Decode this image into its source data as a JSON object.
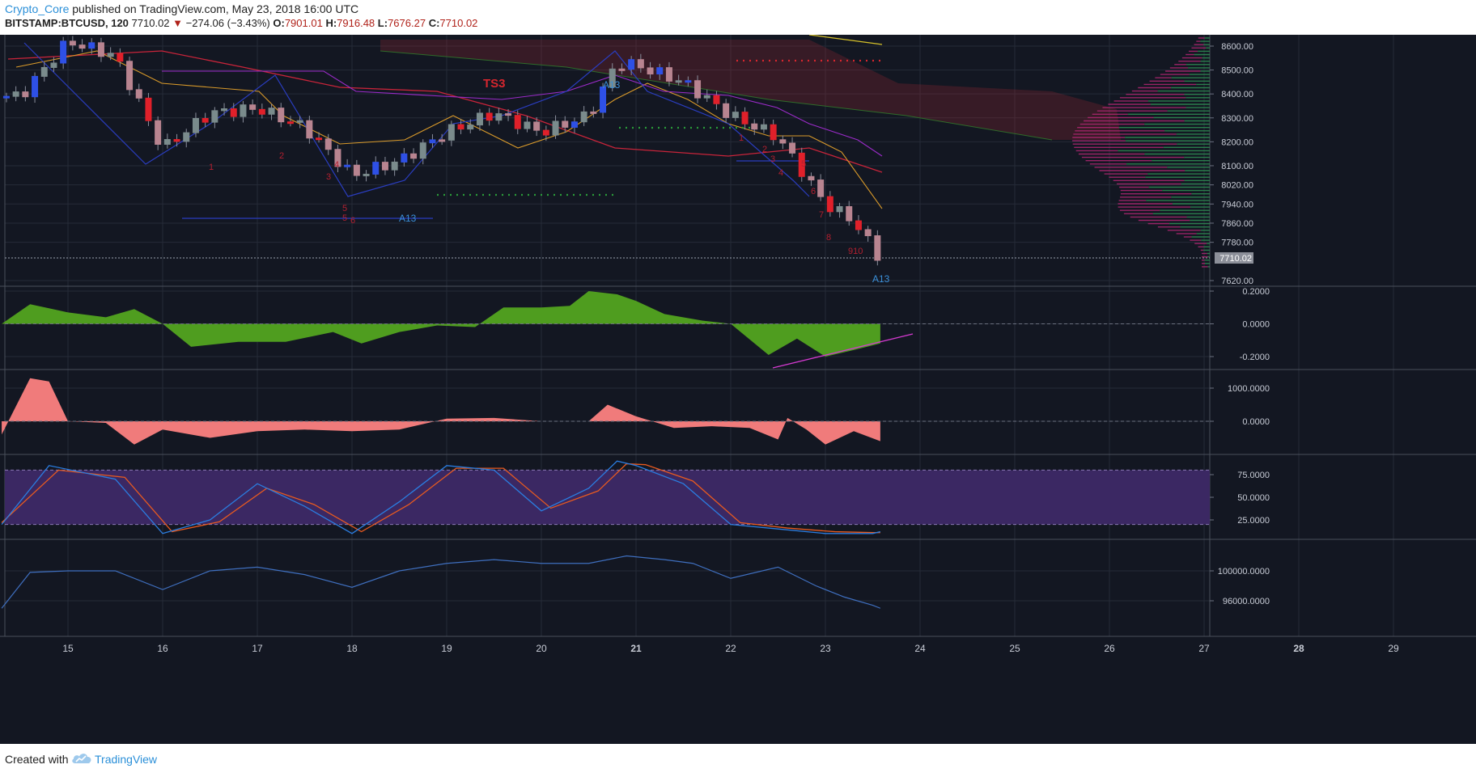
{
  "header": {
    "author": "Crypto_Core",
    "published_text": " published on TradingView.com, May 23, 2018 16:00 UTC",
    "symbol": "BITSTAMP:BTCUSD",
    "interval": ", 120",
    "last_price": "7710.02",
    "change_arrow": "▼",
    "change": "−274.06 (−3.43%)",
    "o_label": "O:",
    "o_value": "7901.01",
    "h_label": "H:",
    "h_value": "7916.48",
    "l_label": "L:",
    "l_value": "7676.27",
    "c_label": "C:",
    "c_value": "7710.02"
  },
  "footer": {
    "created_with": "Created with",
    "brand": "TradingView"
  },
  "colors": {
    "background": "#131722",
    "grid": "#262b38",
    "candle_up": "#2e50e6",
    "candle_down": "#e0202a",
    "candle_neutral_up": "#7a8b8c",
    "candle_neutral_down": "#b88490",
    "macd_fill": "#4f9d1f",
    "osc_fill": "#f07b7b",
    "stoch_k": "#2b7de0",
    "stoch_d": "#e85a1f",
    "stoch_band": "#3b2863",
    "line4": "#3f6fbf",
    "trendline": "#d43ad0"
  },
  "annotations": {
    "ts3": "TS3",
    "a13_labels": [
      "A13",
      "A13",
      "A13"
    ],
    "count_labels": [
      "1",
      "2",
      "3",
      "4",
      "5",
      "6",
      "7",
      "8",
      "9",
      "10",
      "910"
    ]
  },
  "chart_data": [
    {
      "type": "candlestick",
      "title": "BITSTAMP:BTCUSD, 120",
      "x_labels": [
        "15",
        "16",
        "17",
        "18",
        "19",
        "20",
        "21",
        "22",
        "23",
        "24",
        "25",
        "26",
        "27",
        "28",
        "29"
      ],
      "y_ticks": [
        "8600.00",
        "8500.00",
        "8400.00",
        "8300.00",
        "8200.00",
        "8100.00",
        "8020.00",
        "7940.00",
        "7860.00",
        "7780.00",
        "7710.02",
        "7620.00"
      ],
      "last_price_label": "7710.02",
      "series": [
        {
          "name": "close",
          "x": [
            14.5,
            15.0,
            15.5,
            16.0,
            16.5,
            17.0,
            17.5,
            18.0,
            18.5,
            19.0,
            19.5,
            20.0,
            20.5,
            20.8,
            21.0,
            21.5,
            22.0,
            22.5,
            23.0,
            23.3,
            23.58
          ],
          "values": [
            8390,
            8620,
            8560,
            8170,
            8320,
            8340,
            8260,
            8060,
            8120,
            8240,
            8320,
            8240,
            8310,
            8530,
            8520,
            8450,
            8310,
            8220,
            7940,
            7870,
            7710
          ]
        }
      ]
    },
    {
      "type": "area",
      "title": "",
      "y_ticks": [
        "0.2000",
        "0.0000",
        "-0.2000"
      ],
      "series": [
        {
          "name": "",
          "x": [
            14.3,
            14.6,
            15.0,
            15.4,
            15.7,
            16.0,
            16.3,
            16.8,
            17.3,
            17.8,
            18.1,
            18.5,
            18.9,
            19.3,
            19.6,
            20.0,
            20.3,
            20.5,
            20.8,
            21.0,
            21.3,
            21.7,
            22.0,
            22.4,
            22.7,
            23.0,
            23.3,
            23.58
          ],
          "values": [
            0.0,
            0.12,
            0.07,
            0.04,
            0.09,
            0.0,
            -0.14,
            -0.11,
            -0.11,
            -0.05,
            -0.12,
            -0.05,
            -0.01,
            -0.02,
            0.1,
            0.1,
            0.11,
            0.2,
            0.18,
            0.14,
            0.06,
            0.02,
            0.0,
            -0.19,
            -0.09,
            -0.2,
            -0.16,
            -0.12
          ]
        }
      ],
      "annotation": "divergence trendline"
    },
    {
      "type": "area",
      "title": "",
      "y_ticks": [
        "1000.0000",
        "0.0000"
      ],
      "series": [
        {
          "name": "",
          "x": [
            14.3,
            14.6,
            14.8,
            15.0,
            15.4,
            15.7,
            16.0,
            16.5,
            17.0,
            17.5,
            18.0,
            18.5,
            19.0,
            19.5,
            20.0,
            20.5,
            20.7,
            21.0,
            21.4,
            21.8,
            22.2,
            22.5,
            22.6,
            22.8,
            23.0,
            23.3,
            23.58
          ],
          "values": [
            -400,
            1300,
            1200,
            0,
            -50,
            -700,
            -250,
            -500,
            -300,
            -250,
            -300,
            -250,
            80,
            100,
            0,
            0,
            500,
            150,
            -200,
            -150,
            -200,
            -550,
            100,
            -250,
            -700,
            -300,
            -600
          ]
        }
      ]
    },
    {
      "type": "line",
      "title": "",
      "y_ticks": [
        "75.0000",
        "50.0000",
        "25.0000"
      ],
      "band": [
        20,
        80
      ],
      "series": [
        {
          "name": "",
          "x": [
            14.3,
            14.8,
            15.5,
            16.0,
            16.5,
            17.0,
            17.5,
            18.0,
            18.5,
            19.0,
            19.5,
            20.0,
            20.5,
            20.8,
            21.0,
            21.5,
            22.0,
            22.5,
            23.0,
            23.5,
            23.58
          ],
          "values": [
            20,
            85,
            70,
            10,
            25,
            65,
            40,
            10,
            45,
            85,
            80,
            35,
            60,
            90,
            85,
            65,
            20,
            15,
            10,
            10,
            12
          ]
        },
        {
          "name": "",
          "x": [
            14.3,
            14.9,
            15.6,
            16.1,
            16.6,
            17.1,
            17.6,
            18.1,
            18.6,
            19.1,
            19.6,
            20.1,
            20.6,
            20.9,
            21.1,
            21.6,
            22.1,
            22.6,
            23.1,
            23.5,
            23.58
          ],
          "values": [
            22,
            80,
            72,
            12,
            23,
            60,
            42,
            12,
            42,
            82,
            82,
            38,
            57,
            87,
            86,
            68,
            22,
            16,
            12,
            11,
            11
          ]
        }
      ]
    },
    {
      "type": "line",
      "title": "",
      "y_ticks": [
        "100000.0000",
        "96000.0000"
      ],
      "series": [
        {
          "name": "",
          "x": [
            14.3,
            14.6,
            15.0,
            15.5,
            16.0,
            16.5,
            17.0,
            17.5,
            18.0,
            18.5,
            19.0,
            19.5,
            20.0,
            20.5,
            20.9,
            21.3,
            21.6,
            22.0,
            22.5,
            22.9,
            23.2,
            23.5,
            23.58
          ],
          "values": [
            95000,
            99800,
            100000,
            100000,
            97500,
            100000,
            100500,
            99500,
            97800,
            100000,
            101000,
            101500,
            101000,
            101000,
            102000,
            101500,
            101000,
            99000,
            100500,
            98000,
            96500,
            95400,
            95000
          ]
        }
      ]
    }
  ]
}
